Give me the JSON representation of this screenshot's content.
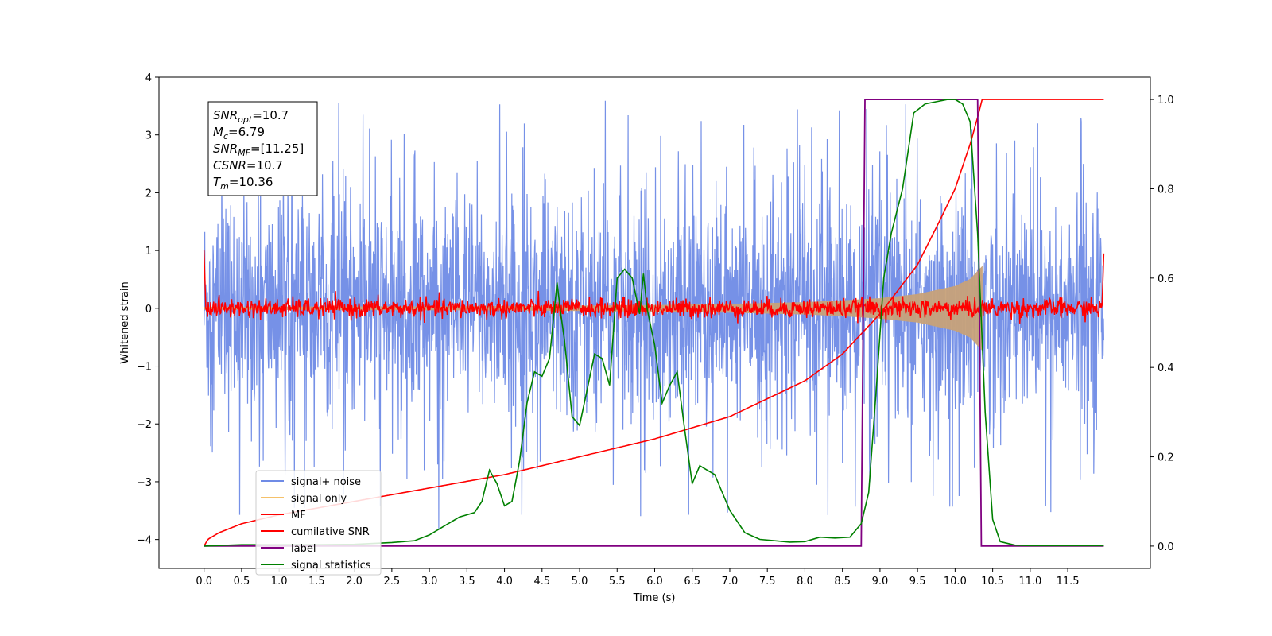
{
  "chart_data": {
    "type": "line",
    "xlabel": "Time (s)",
    "ylabel": "Whitened strain",
    "xlim": [
      -0.6,
      12.6
    ],
    "ylim": [
      -4.5,
      4.0
    ],
    "ylim_right": [
      -0.05,
      1.05
    ],
    "grid": false,
    "x_ticks": [
      "0.0",
      "0.5",
      "1.0",
      "1.5",
      "2.0",
      "2.5",
      "3.0",
      "3.5",
      "4.0",
      "4.5",
      "5.0",
      "5.5",
      "6.0",
      "6.5",
      "7.0",
      "7.5",
      "8.0",
      "8.5",
      "9.0",
      "9.5",
      "10.0",
      "10.5",
      "11.0",
      "11.5"
    ],
    "y_ticks_left": [
      "4",
      "3",
      "2",
      "1",
      "0",
      "−1",
      "−2",
      "−3",
      "−4"
    ],
    "y_ticks_right": [
      "1.0",
      "0.8",
      "0.6",
      "0.4",
      "0.2",
      "0.0"
    ],
    "legend_placement": "lower-left",
    "legend": [
      {
        "label": "signal+ noise",
        "color": "#6f8be6"
      },
      {
        "label": "signal only",
        "color": "#f5c16a"
      },
      {
        "label": "MF",
        "color": "#ff0000"
      },
      {
        "label": "cumilative SNR",
        "color": "#ff0000"
      },
      {
        "label": "label",
        "color": "#800080"
      },
      {
        "label": "signal statistics",
        "color": "#008000"
      }
    ],
    "info_box": [
      {
        "sym": "SNR",
        "sub": "opt",
        "val": "=10.7"
      },
      {
        "sym": "M",
        "sub": "c",
        "val": "=6.79"
      },
      {
        "sym": "SNR",
        "sub": "MF",
        "val": "=[11.25]"
      },
      {
        "sym": "CSNR",
        "sub": "",
        "val": "=10.7"
      },
      {
        "sym": "T",
        "sub": "m",
        "val": "=10.36"
      }
    ],
    "series": [
      {
        "name": "signal+ noise",
        "axis": "left",
        "color": "#6f8be6",
        "x_range": [
          0.0,
          11.98
        ],
        "envelope_abs_typical": 1.4,
        "peak_max": 3.63,
        "peak_min": -3.85
      },
      {
        "name": "signal only",
        "axis": "left",
        "color": "#c8a27a",
        "x": [
          0.0,
          4.0,
          6.0,
          7.0,
          8.0,
          8.5,
          9.0,
          9.5,
          10.0,
          10.2,
          10.36
        ],
        "upper": [
          0.02,
          0.03,
          0.05,
          0.07,
          0.1,
          0.13,
          0.17,
          0.24,
          0.38,
          0.5,
          0.72
        ],
        "lower": [
          -0.02,
          -0.03,
          -0.05,
          -0.07,
          -0.1,
          -0.13,
          -0.17,
          -0.24,
          -0.38,
          -0.5,
          -0.72
        ]
      },
      {
        "name": "MF",
        "axis": "left",
        "color": "#ff0000",
        "x_range": [
          0.0,
          11.98
        ],
        "typical_amplitude": 0.12,
        "start_value": 1.0,
        "end_value": 0.95
      },
      {
        "name": "cumilative SNR",
        "axis": "right",
        "color": "#ff0000",
        "x": [
          0.0,
          0.05,
          0.2,
          0.5,
          1.0,
          2.0,
          3.0,
          4.0,
          5.0,
          6.0,
          7.0,
          8.0,
          8.5,
          9.0,
          9.5,
          9.8,
          10.0,
          10.2,
          10.3,
          10.36,
          11.98
        ],
        "y": [
          0.0,
          0.015,
          0.03,
          0.05,
          0.07,
          0.1,
          0.13,
          0.16,
          0.2,
          0.24,
          0.29,
          0.37,
          0.43,
          0.52,
          0.63,
          0.73,
          0.8,
          0.9,
          0.96,
          1.0,
          1.0
        ]
      },
      {
        "name": "label",
        "axis": "right",
        "color": "#800080",
        "x": [
          0.0,
          8.75,
          8.8,
          10.3,
          10.35,
          11.98
        ],
        "y": [
          0.0,
          0.0,
          1.0,
          1.0,
          0.0,
          0.0
        ]
      },
      {
        "name": "signal statistics",
        "axis": "right",
        "color": "#008000",
        "x": [
          0.0,
          0.5,
          1.0,
          1.5,
          2.0,
          2.5,
          2.8,
          3.0,
          3.2,
          3.4,
          3.6,
          3.7,
          3.8,
          3.9,
          4.0,
          4.1,
          4.2,
          4.3,
          4.4,
          4.5,
          4.6,
          4.7,
          4.75,
          4.8,
          4.9,
          5.0,
          5.1,
          5.2,
          5.3,
          5.4,
          5.5,
          5.6,
          5.7,
          5.8,
          5.85,
          5.9,
          6.0,
          6.1,
          6.2,
          6.3,
          6.4,
          6.5,
          6.6,
          6.7,
          6.8,
          6.9,
          7.0,
          7.2,
          7.4,
          7.6,
          7.8,
          8.0,
          8.2,
          8.4,
          8.6,
          8.75,
          8.85,
          8.95,
          9.05,
          9.15,
          9.3,
          9.45,
          9.6,
          9.75,
          9.9,
          10.0,
          10.1,
          10.2,
          10.3,
          10.4,
          10.5,
          10.6,
          10.8,
          11.0,
          11.98
        ],
        "y": [
          0.0,
          0.003,
          0.003,
          0.003,
          0.004,
          0.008,
          0.012,
          0.025,
          0.045,
          0.065,
          0.075,
          0.1,
          0.17,
          0.14,
          0.09,
          0.1,
          0.19,
          0.32,
          0.39,
          0.38,
          0.42,
          0.59,
          0.52,
          0.46,
          0.29,
          0.27,
          0.35,
          0.43,
          0.42,
          0.36,
          0.6,
          0.62,
          0.6,
          0.52,
          0.61,
          0.53,
          0.45,
          0.32,
          0.36,
          0.39,
          0.26,
          0.14,
          0.18,
          0.17,
          0.16,
          0.12,
          0.08,
          0.03,
          0.015,
          0.012,
          0.009,
          0.01,
          0.02,
          0.018,
          0.02,
          0.05,
          0.12,
          0.35,
          0.6,
          0.7,
          0.8,
          0.97,
          0.99,
          0.995,
          1.0,
          1.0,
          0.99,
          0.95,
          0.7,
          0.3,
          0.06,
          0.01,
          0.002,
          0.001,
          0.001
        ]
      }
    ]
  }
}
